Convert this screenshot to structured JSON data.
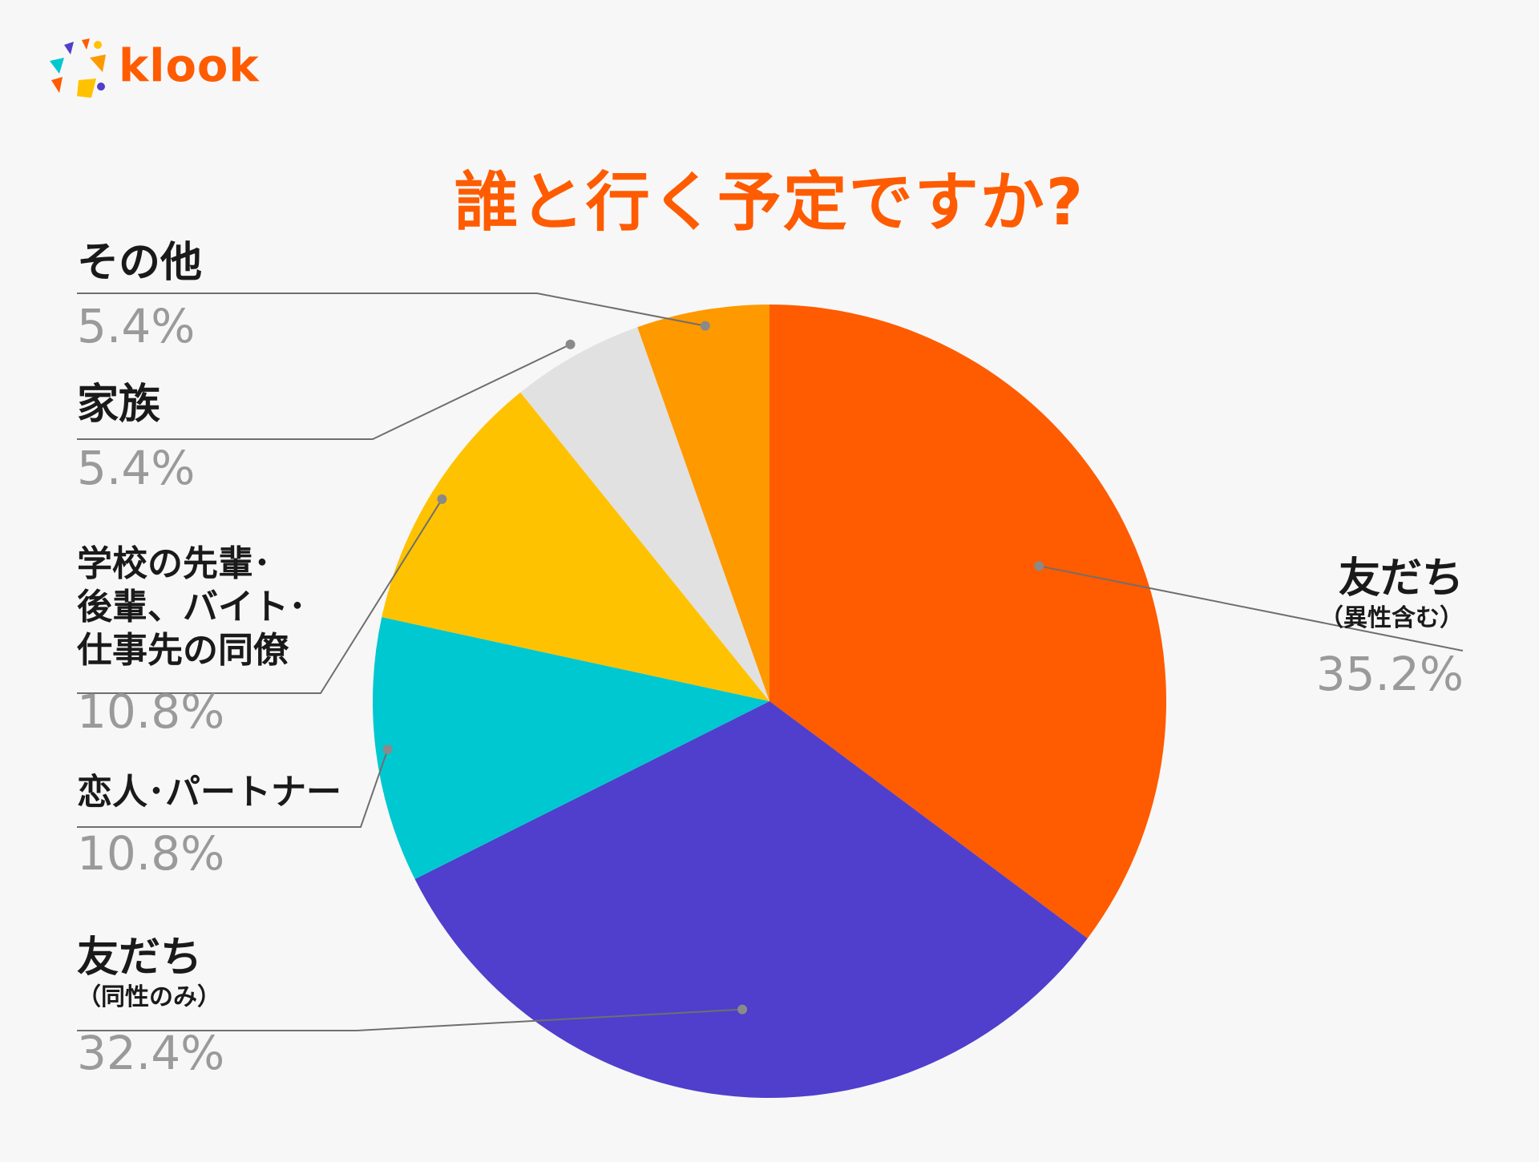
{
  "brand": {
    "name": "klook",
    "color": "#ff5b00"
  },
  "chart_data": {
    "type": "pie",
    "title": "誰と行く予定ですか?",
    "slices": [
      {
        "label": "友だち",
        "sublabel": "（異性含む）",
        "value": 35.2,
        "value_text": "35.2%",
        "color": "#ff5b00"
      },
      {
        "label": "友だち",
        "sublabel": "（同性のみ）",
        "value": 32.4,
        "value_text": "32.4%",
        "color": "#4f3fcc"
      },
      {
        "label": "恋人･パートナー",
        "sublabel": "",
        "value": 10.8,
        "value_text": "10.8%",
        "color": "#00c8d0"
      },
      {
        "label": "学校の先輩･後輩、バイト･仕事先の同僚",
        "lines": [
          "学校の先輩･",
          "後輩、バイト･",
          "仕事先の同僚"
        ],
        "sublabel": "",
        "value": 10.8,
        "value_text": "10.8%",
        "color": "#ffc200"
      },
      {
        "label": "家族",
        "sublabel": "",
        "value": 5.4,
        "value_text": "5.4%",
        "color": "#e1e1e1"
      },
      {
        "label": "その他",
        "sublabel": "",
        "value": 5.4,
        "value_text": "5.4%",
        "color": "#ff9900"
      }
    ],
    "start_angle": "12 o'clock",
    "direction": "clockwise",
    "legend": "none"
  }
}
